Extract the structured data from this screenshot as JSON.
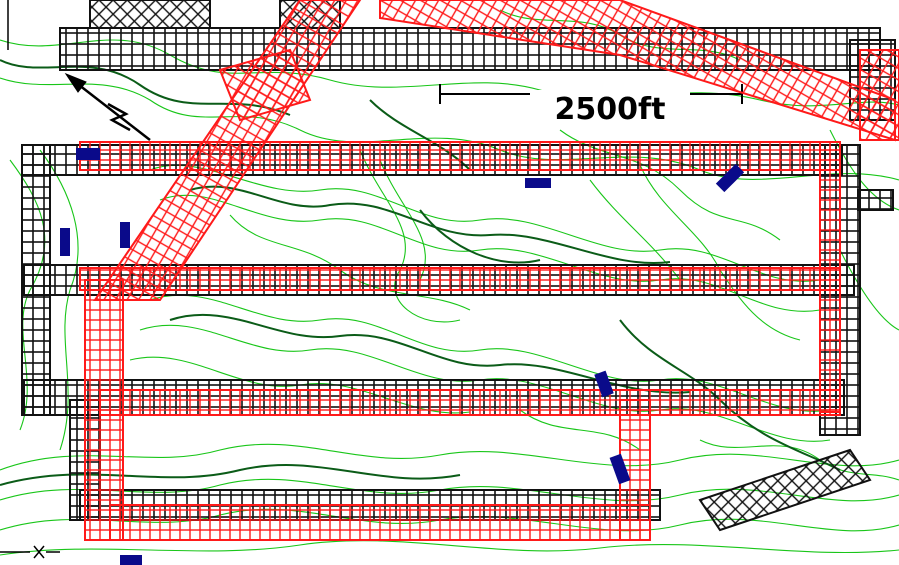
{
  "scale_bar": {
    "label": "2500ft"
  },
  "colors": {
    "contour_minor": "#19c619",
    "contour_major": "#0b5c18",
    "red_grid": "#ff1a1a",
    "black_grid": "#111111",
    "elevation_tag": "#0a0a8a",
    "background": "#ffffff"
  },
  "icons": {
    "north_arrow": "north-arrow-icon"
  }
}
